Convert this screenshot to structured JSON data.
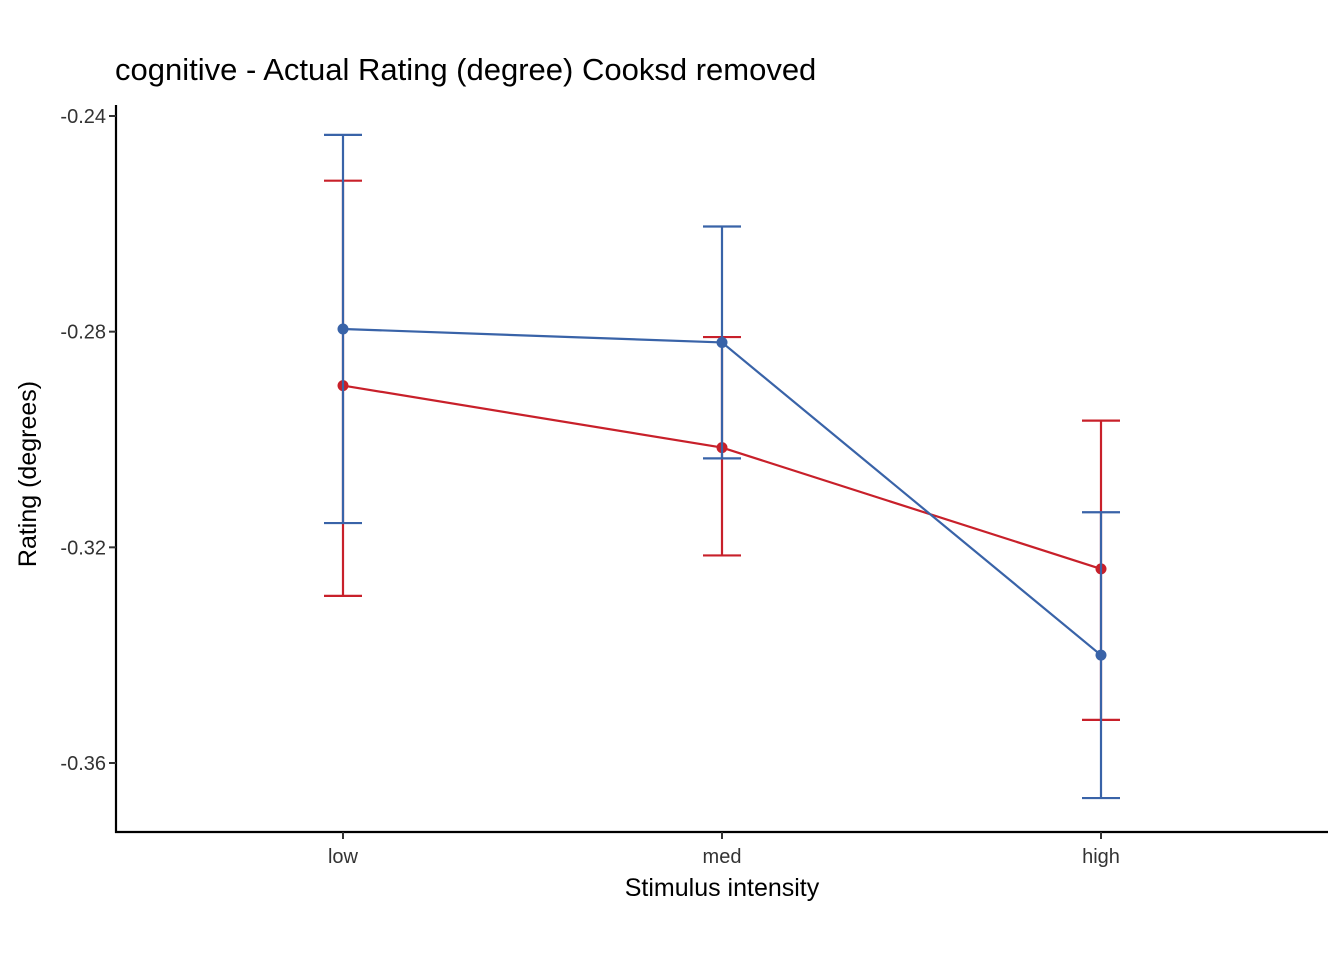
{
  "chart_data": {
    "type": "line",
    "title": "cognitive  - Actual Rating (degree) Cooksd removed",
    "xlabel": "Stimulus intensity",
    "ylabel": "Rating (degrees)",
    "categories": [
      "low",
      "med",
      "high"
    ],
    "ylim": [
      -0.3725,
      -0.2385
    ],
    "yticks": [
      -0.24,
      -0.28,
      -0.32,
      -0.36
    ],
    "ytick_labels": [
      "-0.24",
      "-0.28",
      "-0.32",
      "-0.36"
    ],
    "grid": false,
    "legend": "none",
    "series": [
      {
        "color": "#c8202a",
        "values": [
          -0.29,
          -0.3015,
          -0.324
        ],
        "error_low": [
          -0.329,
          -0.3215,
          -0.352
        ],
        "error_high": [
          -0.252,
          -0.281,
          -0.2965
        ]
      },
      {
        "color": "#3963a8",
        "values": [
          -0.2795,
          -0.282,
          -0.34
        ],
        "error_low": [
          -0.3155,
          -0.3035,
          -0.3665
        ],
        "error_high": [
          -0.2435,
          -0.2605,
          -0.3135
        ]
      }
    ]
  }
}
